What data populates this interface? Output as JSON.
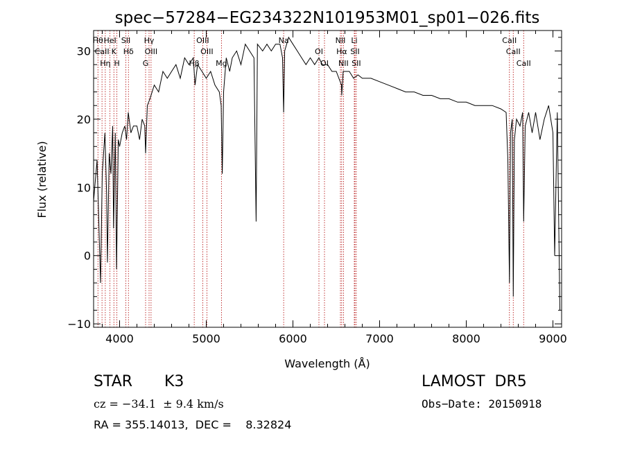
{
  "chart_data": {
    "type": "line",
    "title": "spec−57284−EG234322N101953M01_sp01−026.fits",
    "xlabel": "Wavelength (Å)",
    "ylabel": "Flux (relative)",
    "xlim": [
      3700,
      9100
    ],
    "ylim": [
      -10.5,
      33
    ],
    "x_ticks": [
      4000,
      5000,
      6000,
      7000,
      8000,
      9000
    ],
    "y_ticks": [
      -10,
      0,
      10,
      20,
      30
    ],
    "x_tick_labels": [
      "4000",
      "5000",
      "6000",
      "7000",
      "8000",
      "9000"
    ],
    "y_tick_labels": [
      "−10",
      "0",
      "10",
      "20",
      "30"
    ],
    "grid": false,
    "series": [
      {
        "color": "#000000",
        "points": [
          [
            3700,
            8
          ],
          [
            3740,
            14
          ],
          [
            3780,
            -4
          ],
          [
            3800,
            12
          ],
          [
            3830,
            18
          ],
          [
            3850,
            9
          ],
          [
            3860,
            -1
          ],
          [
            3880,
            15
          ],
          [
            3900,
            12
          ],
          [
            3920,
            19
          ],
          [
            3930,
            4
          ],
          [
            3950,
            18
          ],
          [
            3965,
            -2
          ],
          [
            3985,
            17
          ],
          [
            4000,
            16
          ],
          [
            4030,
            18
          ],
          [
            4060,
            19
          ],
          [
            4080,
            17
          ],
          [
            4100,
            21
          ],
          [
            4130,
            18
          ],
          [
            4160,
            19
          ],
          [
            4200,
            19
          ],
          [
            4230,
            17
          ],
          [
            4260,
            20
          ],
          [
            4290,
            19
          ],
          [
            4300,
            15
          ],
          [
            4320,
            22
          ],
          [
            4350,
            23
          ],
          [
            4400,
            25
          ],
          [
            4450,
            24
          ],
          [
            4500,
            27
          ],
          [
            4550,
            26
          ],
          [
            4600,
            27
          ],
          [
            4650,
            28
          ],
          [
            4700,
            26
          ],
          [
            4750,
            29
          ],
          [
            4800,
            28
          ],
          [
            4850,
            29
          ],
          [
            4870,
            25
          ],
          [
            4900,
            28
          ],
          [
            4950,
            27
          ],
          [
            5000,
            26
          ],
          [
            5050,
            27
          ],
          [
            5100,
            25
          ],
          [
            5150,
            24
          ],
          [
            5172,
            22
          ],
          [
            5185,
            12
          ],
          [
            5200,
            24
          ],
          [
            5230,
            29
          ],
          [
            5270,
            27
          ],
          [
            5300,
            29
          ],
          [
            5350,
            30
          ],
          [
            5400,
            28
          ],
          [
            5450,
            31
          ],
          [
            5500,
            30
          ],
          [
            5550,
            29
          ],
          [
            5575,
            5
          ],
          [
            5590,
            31
          ],
          [
            5650,
            30
          ],
          [
            5700,
            31
          ],
          [
            5750,
            30
          ],
          [
            5800,
            31
          ],
          [
            5850,
            31
          ],
          [
            5880,
            29
          ],
          [
            5893,
            21
          ],
          [
            5905,
            30
          ],
          [
            5950,
            32
          ],
          [
            6000,
            31
          ],
          [
            6050,
            30
          ],
          [
            6100,
            29
          ],
          [
            6150,
            28
          ],
          [
            6200,
            29
          ],
          [
            6250,
            28
          ],
          [
            6300,
            29
          ],
          [
            6340,
            28
          ],
          [
            6400,
            28
          ],
          [
            6450,
            27
          ],
          [
            6500,
            27
          ],
          [
            6560,
            25
          ],
          [
            6563,
            23.5
          ],
          [
            6580,
            27
          ],
          [
            6650,
            27
          ],
          [
            6700,
            26
          ],
          [
            6750,
            26.5
          ],
          [
            6800,
            26
          ],
          [
            6900,
            26
          ],
          [
            7000,
            25.5
          ],
          [
            7100,
            25
          ],
          [
            7200,
            24.5
          ],
          [
            7300,
            24
          ],
          [
            7400,
            24
          ],
          [
            7500,
            23.5
          ],
          [
            7600,
            23.5
          ],
          [
            7700,
            23
          ],
          [
            7800,
            23
          ],
          [
            7900,
            22.5
          ],
          [
            8000,
            22.5
          ],
          [
            8100,
            22
          ],
          [
            8200,
            22
          ],
          [
            8300,
            22
          ],
          [
            8400,
            21.5
          ],
          [
            8460,
            21
          ],
          [
            8480,
            14
          ],
          [
            8498,
            -4
          ],
          [
            8510,
            18
          ],
          [
            8530,
            20
          ],
          [
            8542,
            -6
          ],
          [
            8555,
            17
          ],
          [
            8580,
            20
          ],
          [
            8620,
            19
          ],
          [
            8650,
            21
          ],
          [
            8662,
            5
          ],
          [
            8680,
            19
          ],
          [
            8720,
            21
          ],
          [
            8760,
            18
          ],
          [
            8800,
            21
          ],
          [
            8850,
            17
          ],
          [
            8900,
            20
          ],
          [
            8950,
            22
          ],
          [
            9000,
            18
          ],
          [
            9020,
            0
          ],
          [
            9050,
            21
          ],
          [
            9080,
            -8
          ]
        ]
      }
    ],
    "line_markers": [
      {
        "x": 3750,
        "label": "Hθ"
      },
      {
        "x": 3797,
        "label": "CaII"
      },
      {
        "x": 3835,
        "label": "Hη"
      },
      {
        "x": 3889,
        "label": "HeI"
      },
      {
        "x": 3934,
        "label": "K"
      },
      {
        "x": 3969,
        "label": "H"
      },
      {
        "x": 4072,
        "label": "SII"
      },
      {
        "x": 4102,
        "label": "Hδ"
      },
      {
        "x": 4300,
        "label": "G"
      },
      {
        "x": 4340,
        "label": "Hγ"
      },
      {
        "x": 4363,
        "label": "OIII"
      },
      {
        "x": 4861,
        "label": "Hβ"
      },
      {
        "x": 4959,
        "label": "OIII"
      },
      {
        "x": 5007,
        "label": "OIII"
      },
      {
        "x": 5175,
        "label": "Mg"
      },
      {
        "x": 5893,
        "label": "Na"
      },
      {
        "x": 6300,
        "label": "OI"
      },
      {
        "x": 6364,
        "label": "OI"
      },
      {
        "x": 6548,
        "label": "NII"
      },
      {
        "x": 6563,
        "label": "Hα"
      },
      {
        "x": 6583,
        "label": "NII"
      },
      {
        "x": 6708,
        "label": "Li"
      },
      {
        "x": 6716,
        "label": "SII"
      },
      {
        "x": 6731,
        "label": "SII"
      },
      {
        "x": 8498,
        "label": "CaII"
      },
      {
        "x": 8542,
        "label": "CaII"
      },
      {
        "x": 8662,
        "label": "CaII"
      }
    ],
    "marker_color": "#b00000"
  },
  "info": {
    "object_type": "STAR",
    "subclass": "K3",
    "survey": "LAMOST  DR5",
    "cz": "cz = −34.1  ± 9.4 km/s",
    "obs_date": "Obs−Date: 20150918",
    "coords": "RA = 355.14013,  DEC =    8.32824"
  }
}
